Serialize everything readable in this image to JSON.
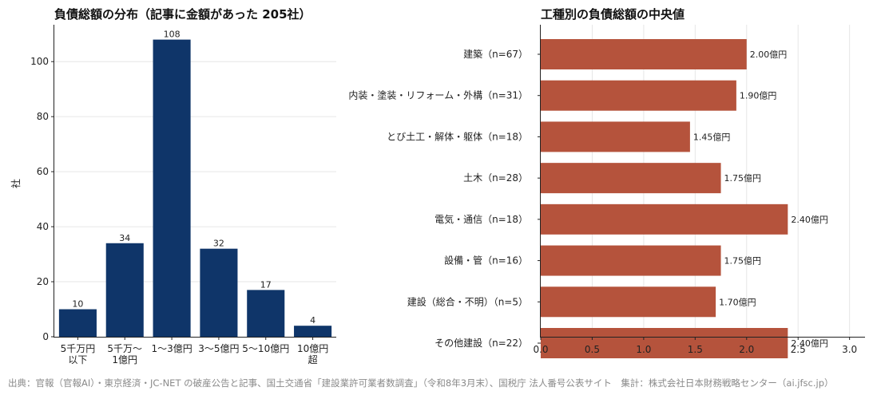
{
  "chart_data": [
    {
      "type": "bar",
      "title": "負債総額の分布（記事に金額があった 205社）",
      "xlabel": "",
      "ylabel": "社",
      "categories": [
        [
          "5千万円",
          "以下"
        ],
        [
          "5千万〜",
          "1億円"
        ],
        [
          "1〜3億円"
        ],
        [
          "3〜5億円"
        ],
        [
          "5〜10億円"
        ],
        [
          "10億円",
          "超"
        ]
      ],
      "values": [
        10,
        34,
        108,
        32,
        17,
        4
      ],
      "data_labels": [
        "10",
        "34",
        "108",
        "32",
        "17",
        "4"
      ],
      "ylim": [
        0,
        113.4
      ],
      "yticks": [
        0,
        20,
        40,
        60,
        80,
        100
      ],
      "ytick_labels": [
        "0",
        "20",
        "40",
        "60",
        "80",
        "100"
      ],
      "grid": "horizontal",
      "color": "#0f3569"
    },
    {
      "type": "bar",
      "orientation": "horizontal",
      "title": "工種別の負債総額の中央値",
      "xlabel": "",
      "ylabel": "",
      "categories": [
        "建築（n=67）",
        "内装・塗装・リフォーム・外構（n=31）",
        "とび土工・解体・躯体（n=18）",
        "土木（n=28）",
        "電気・通信（n=18）",
        "設備・管（n=16）",
        "建設（総合・不明）（n=5）",
        "その他建設（n=22）"
      ],
      "values": [
        2.0,
        1.9,
        1.45,
        1.75,
        2.4,
        1.75,
        1.7,
        2.4
      ],
      "data_labels": [
        "2.00億円",
        "1.90億円",
        "1.45億円",
        "1.75億円",
        "2.40億円",
        "1.75億円",
        "1.70億円",
        "2.40億円"
      ],
      "xlim": [
        0,
        3.15
      ],
      "xticks": [
        0,
        0.5,
        1.0,
        1.5,
        2.0,
        2.5,
        3.0
      ],
      "xtick_labels": [
        "0.0",
        "0.5",
        "1.0",
        "1.5",
        "2.0",
        "2.5",
        "3.0"
      ],
      "grid": "vertical",
      "color": "#b5533c"
    }
  ],
  "footer": {
    "source": "出典：官報（官報AI）・東京経済・JC-NET の破産公告と記事、国土交通省「建設業許可業者数調査」（令和8年3月末）、国税庁 法人番号公表サイト　集計：株式会社日本財務戦略センター（ai.jfsc.jp）"
  }
}
